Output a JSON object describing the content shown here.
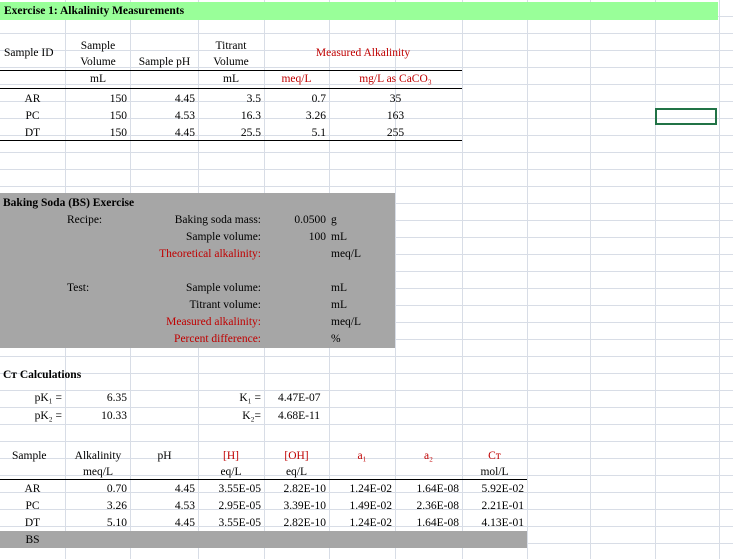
{
  "title": "Exercise 1:  Alkalinity Measurements",
  "colors": {
    "title_bg": "#99ff99",
    "gray": "#a6a6a6",
    "red": "#c00000",
    "selection": "#217346"
  },
  "ex1": {
    "h_sample_id": "Sample ID",
    "h_sample_volume_1": "Sample",
    "h_sample_volume_2": "Volume",
    "h_sample_ph": "Sample pH",
    "h_titrant_1": "Titrant",
    "h_titrant_2": "Volume",
    "h_measured": "Measured Alkalinity",
    "u_ml1": "mL",
    "u_ml2": "mL",
    "u_meq": "meq/L",
    "u_mg": "mg/L as CaCO₃",
    "rows": [
      {
        "id": "AR",
        "vol": "150",
        "ph": "4.45",
        "titrant": "3.5",
        "meq": "0.7",
        "mg": "35"
      },
      {
        "id": "PC",
        "vol": "150",
        "ph": "4.53",
        "titrant": "16.3",
        "meq": "3.26",
        "mg": "163"
      },
      {
        "id": "DT",
        "vol": "150",
        "ph": "4.45",
        "titrant": "25.5",
        "meq": "5.1",
        "mg": "255"
      }
    ]
  },
  "bs": {
    "title": "Baking Soda (BS) Exercise",
    "recipe": "Recipe:",
    "mass_label": "Baking soda mass:",
    "mass_value": "0.0500",
    "mass_unit": "g",
    "vol_label": "Sample volume:",
    "vol_value": "100",
    "vol_unit": "mL",
    "theo_label": "Theoretical alkalinity:",
    "theo_unit": "meq/L",
    "test": "Test:",
    "tsv_label": "Sample volume:",
    "tsv_unit": "mL",
    "tv_label": "Titrant volume:",
    "tv_unit": "mL",
    "ma_label": "Measured alkalinity:",
    "ma_unit": "meq/L",
    "pd_label": "Percent difference:",
    "pd_unit": "%"
  },
  "ct": {
    "title": "Cᴛ Calculations",
    "pk1_label": "pK₁ =",
    "pk1": "6.35",
    "pk2_label": "pK₂ =",
    "pk2": "10.33",
    "k1_label": "K₁ =",
    "k1": "4.47E-07",
    "k2_label": "K₂=",
    "k2": "4.68E-11"
  },
  "tbl": {
    "h_sample": "Sample",
    "h_alk": "Alkalinity",
    "h_ph": "pH",
    "h_h": "[H]",
    "h_oh": "[OH]",
    "h_a1": "a₁",
    "h_a2": "a₂",
    "h_ct": "Cᴛ",
    "u_alk": "meq/L",
    "u_h": "eq/L",
    "u_oh": "eq/L",
    "u_ct": "mol/L",
    "rows": [
      {
        "s": "AR",
        "alk": "0.70",
        "ph": "4.45",
        "h": "3.55E-05",
        "oh": "2.82E-10",
        "a1": "1.24E-02",
        "a2": "1.64E-08",
        "ct": "5.92E-02"
      },
      {
        "s": "PC",
        "alk": "3.26",
        "ph": "4.53",
        "h": "2.95E-05",
        "oh": "3.39E-10",
        "a1": "1.49E-02",
        "a2": "2.36E-08",
        "ct": "2.21E-01"
      },
      {
        "s": "DT",
        "alk": "5.10",
        "ph": "4.45",
        "h": "3.55E-05",
        "oh": "2.82E-10",
        "a1": "1.24E-02",
        "a2": "1.64E-08",
        "ct": "4.13E-01"
      }
    ],
    "bs_label": "BS"
  }
}
